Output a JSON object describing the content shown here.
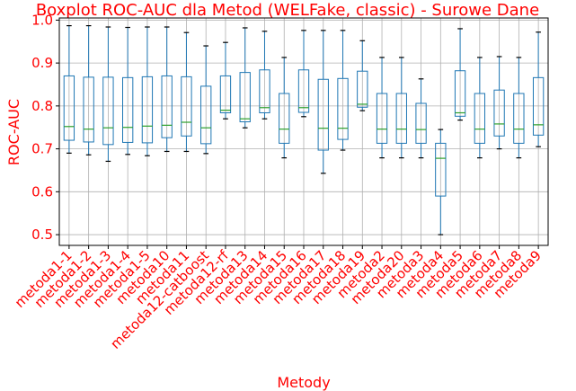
{
  "chart_data": {
    "type": "boxplot",
    "title": "Boxplot ROC-AUC dla Metod (WELFake, classic) - Surowe Dane",
    "xlabel": "Metody",
    "ylabel": "ROC-AUC",
    "ylim": [
      0.475,
      1.005
    ],
    "yticks": [
      "0.5",
      "0.6",
      "0.7",
      "0.8",
      "0.9",
      "1.0"
    ],
    "ytick_values": [
      0.5,
      0.6,
      0.7,
      0.8,
      0.9,
      1.0
    ],
    "grid": true,
    "colors": {
      "box": "#1f77b4",
      "median": "#2ca02c",
      "cap": "#000000",
      "text": "#ff0000",
      "grid": "#b0b0b0"
    },
    "categories": [
      "metoda1-1",
      "metoda1-2",
      "metoda1-3",
      "metoda1-4",
      "metoda1-5",
      "metoda10",
      "metoda11",
      "metoda12-catboost",
      "metoda12-rf",
      "metoda13",
      "metoda14",
      "metoda15",
      "metoda16",
      "metoda17",
      "metoda18",
      "metoda19",
      "metoda2",
      "metoda20",
      "metoda3",
      "metoda4",
      "metoda5",
      "metoda6",
      "metoda7",
      "metoda8",
      "metoda9"
    ],
    "boxes": [
      {
        "min": 0.69,
        "q1": 0.72,
        "median": 0.752,
        "q3": 0.87,
        "max": 0.987
      },
      {
        "min": 0.686,
        "q1": 0.716,
        "median": 0.746,
        "q3": 0.867,
        "max": 0.987
      },
      {
        "min": 0.671,
        "q1": 0.71,
        "median": 0.749,
        "q3": 0.867,
        "max": 0.984
      },
      {
        "min": 0.687,
        "q1": 0.715,
        "median": 0.75,
        "q3": 0.866,
        "max": 0.983
      },
      {
        "min": 0.684,
        "q1": 0.714,
        "median": 0.753,
        "q3": 0.868,
        "max": 0.984
      },
      {
        "min": 0.694,
        "q1": 0.726,
        "median": 0.755,
        "q3": 0.87,
        "max": 0.984
      },
      {
        "min": 0.694,
        "q1": 0.73,
        "median": 0.762,
        "q3": 0.868,
        "max": 0.971
      },
      {
        "min": 0.689,
        "q1": 0.712,
        "median": 0.749,
        "q3": 0.846,
        "max": 0.94
      },
      {
        "min": 0.77,
        "q1": 0.784,
        "median": 0.79,
        "q3": 0.87,
        "max": 0.948
      },
      {
        "min": 0.749,
        "q1": 0.763,
        "median": 0.77,
        "q3": 0.878,
        "max": 0.982
      },
      {
        "min": 0.77,
        "q1": 0.784,
        "median": 0.796,
        "q3": 0.884,
        "max": 0.974
      },
      {
        "min": 0.679,
        "q1": 0.713,
        "median": 0.746,
        "q3": 0.829,
        "max": 0.913
      },
      {
        "min": 0.775,
        "q1": 0.785,
        "median": 0.796,
        "q3": 0.884,
        "max": 0.976
      },
      {
        "min": 0.643,
        "q1": 0.697,
        "median": 0.748,
        "q3": 0.862,
        "max": 0.976
      },
      {
        "min": 0.697,
        "q1": 0.722,
        "median": 0.748,
        "q3": 0.864,
        "max": 0.976
      },
      {
        "min": 0.789,
        "q1": 0.797,
        "median": 0.804,
        "q3": 0.881,
        "max": 0.952
      },
      {
        "min": 0.679,
        "q1": 0.713,
        "median": 0.746,
        "q3": 0.829,
        "max": 0.913
      },
      {
        "min": 0.679,
        "q1": 0.713,
        "median": 0.746,
        "q3": 0.829,
        "max": 0.913
      },
      {
        "min": 0.679,
        "q1": 0.713,
        "median": 0.745,
        "q3": 0.806,
        "max": 0.863
      },
      {
        "min": 0.5,
        "q1": 0.59,
        "median": 0.678,
        "q3": 0.713,
        "max": 0.745
      },
      {
        "min": 0.767,
        "q1": 0.776,
        "median": 0.784,
        "q3": 0.882,
        "max": 0.98
      },
      {
        "min": 0.679,
        "q1": 0.713,
        "median": 0.746,
        "q3": 0.829,
        "max": 0.913
      },
      {
        "min": 0.7,
        "q1": 0.73,
        "median": 0.758,
        "q3": 0.837,
        "max": 0.915
      },
      {
        "min": 0.679,
        "q1": 0.713,
        "median": 0.746,
        "q3": 0.829,
        "max": 0.913
      },
      {
        "min": 0.705,
        "q1": 0.732,
        "median": 0.756,
        "q3": 0.866,
        "max": 0.972
      }
    ]
  }
}
